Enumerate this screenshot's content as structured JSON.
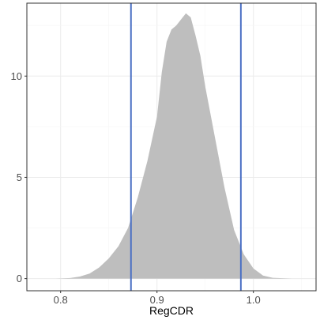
{
  "chart_data": {
    "type": "area",
    "title": "",
    "xlabel": "RegCDR",
    "ylabel": "",
    "xlim": [
      0.765,
      1.065
    ],
    "ylim": [
      -0.6,
      13.6
    ],
    "x_ticks": [
      0.8,
      0.9,
      1.0
    ],
    "x_tick_labels": [
      "0.8",
      "0.9",
      "1.0"
    ],
    "y_ticks": [
      0,
      5,
      10
    ],
    "y_tick_labels": [
      "0",
      "5",
      "10"
    ],
    "grid": true,
    "legend": "none",
    "series": [
      {
        "x": [
          0.795,
          0.81,
          0.82,
          0.83,
          0.84,
          0.85,
          0.86,
          0.87,
          0.88,
          0.89,
          0.9,
          0.905,
          0.91,
          0.915,
          0.92,
          0.925,
          0.93,
          0.935,
          0.94,
          0.945,
          0.95,
          0.96,
          0.97,
          0.98,
          0.99,
          1.0,
          1.01,
          1.02,
          1.04
        ],
        "y": [
          0.0,
          0.03,
          0.1,
          0.25,
          0.55,
          1.0,
          1.6,
          2.5,
          4.0,
          5.8,
          8.0,
          10.2,
          11.7,
          12.3,
          12.5,
          12.8,
          13.1,
          12.9,
          12.0,
          11.0,
          9.5,
          7.0,
          4.5,
          2.4,
          1.2,
          0.5,
          0.15,
          0.04,
          0.0
        ],
        "fill": "#bebebe"
      }
    ],
    "vlines": [
      {
        "x": 0.873,
        "color": "#4a6fc4"
      },
      {
        "x": 0.987,
        "color": "#4a6fc4"
      }
    ]
  }
}
